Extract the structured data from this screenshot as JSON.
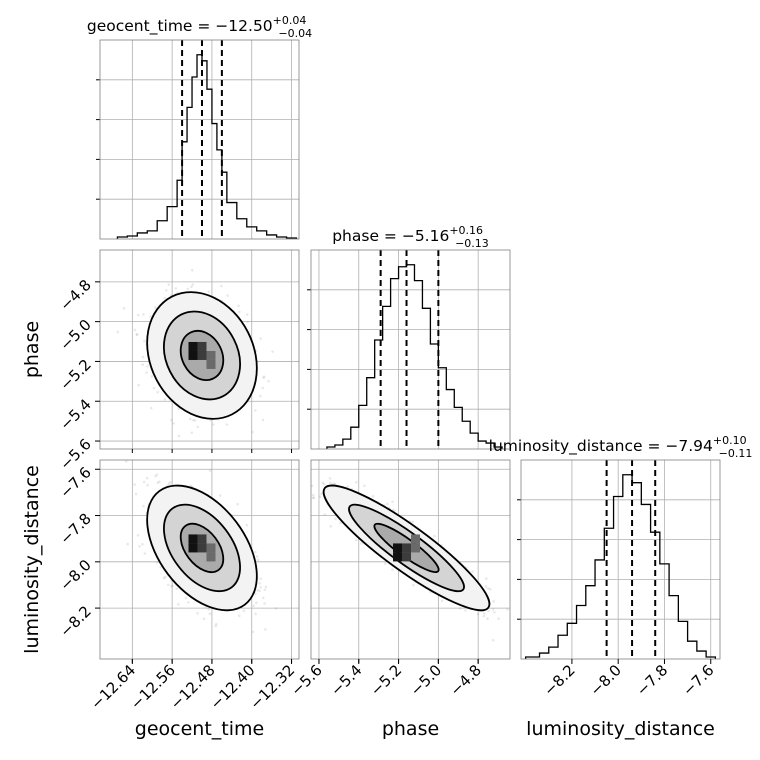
{
  "chart_data": {
    "type": "corner",
    "parameters": [
      {
        "name": "geocent_time",
        "axis_label": "geocent_time",
        "title_main": "geocent_time = −12.50",
        "title_plus": "+0.04",
        "title_minus": "−0.04",
        "median": -12.5,
        "quantiles": [
          -12.54,
          -12.5,
          -12.46
        ],
        "range": [
          -12.705,
          -12.305
        ],
        "ticks": [
          -12.64,
          -12.56,
          -12.48,
          -12.4,
          -12.32
        ],
        "tick_labels": [
          "−12.64",
          "−12.56",
          "−12.48",
          "−12.40",
          "−12.32"
        ],
        "hist_edges": [
          -12.67,
          -12.65,
          -12.63,
          -12.61,
          -12.59,
          -12.57,
          -12.55,
          -12.54,
          -12.53,
          -12.52,
          -12.51,
          -12.5,
          -12.49,
          -12.48,
          -12.47,
          -12.46,
          -12.45,
          -12.43,
          -12.41,
          -12.39,
          -12.37,
          -12.35,
          -12.33,
          -12.31
        ],
        "hist_counts": [
          0.01,
          0.015,
          0.03,
          0.04,
          0.09,
          0.16,
          0.29,
          0.48,
          0.65,
          0.8,
          0.91,
          0.88,
          0.74,
          0.57,
          0.44,
          0.33,
          0.18,
          0.1,
          0.06,
          0.04,
          0.02,
          0.01,
          0.005
        ]
      },
      {
        "name": "phase",
        "axis_label": "phase",
        "title_main": "phase = −5.16",
        "title_plus": "+0.16",
        "title_minus": "−0.13",
        "median": -5.16,
        "quantiles": [
          -5.29,
          -5.16,
          -5.0
        ],
        "range": [
          -5.64,
          -4.64
        ],
        "ticks": [
          -5.6,
          -5.4,
          -5.2,
          -5.0,
          -4.8
        ],
        "tick_labels": [
          "−5.6",
          "−5.4",
          "−5.2",
          "−5.0",
          "−4.8"
        ],
        "hist_edges": [
          -5.56,
          -5.52,
          -5.48,
          -5.44,
          -5.4,
          -5.36,
          -5.32,
          -5.28,
          -5.24,
          -5.2,
          -5.16,
          -5.12,
          -5.08,
          -5.04,
          -5.0,
          -4.96,
          -4.92,
          -4.88,
          -4.84,
          -4.8,
          -4.76,
          -4.72,
          -4.68
        ],
        "hist_counts": [
          0.01,
          0.02,
          0.05,
          0.11,
          0.22,
          0.36,
          0.55,
          0.72,
          0.86,
          0.92,
          0.93,
          0.85,
          0.71,
          0.53,
          0.41,
          0.3,
          0.21,
          0.14,
          0.08,
          0.04,
          0.03,
          0.01
        ]
      },
      {
        "name": "luminosity_distance",
        "axis_label": "luminosity_distance",
        "title_main": "luminosity_distance = −7.94",
        "title_plus": "+0.10",
        "title_minus": "−0.11",
        "median": -7.94,
        "quantiles": [
          -8.05,
          -7.94,
          -7.84
        ],
        "range": [
          -8.42,
          -7.56
        ],
        "ticks": [
          -8.2,
          -8.0,
          -7.8,
          -7.6
        ],
        "tick_labels": [
          "−8.2",
          "−8.0",
          "−7.8",
          "−7.6"
        ],
        "hist_edges": [
          -8.4,
          -8.34,
          -8.3,
          -8.26,
          -8.22,
          -8.18,
          -8.14,
          -8.1,
          -8.06,
          -8.02,
          -7.98,
          -7.94,
          -7.9,
          -7.86,
          -7.82,
          -7.78,
          -7.74,
          -7.7,
          -7.66,
          -7.62,
          -7.58
        ],
        "hist_counts": [
          0.01,
          0.03,
          0.06,
          0.12,
          0.18,
          0.27,
          0.37,
          0.5,
          0.66,
          0.82,
          0.93,
          0.89,
          0.78,
          0.64,
          0.48,
          0.32,
          0.19,
          0.09,
          0.04,
          0.01
        ]
      }
    ],
    "pairs": [
      {
        "x": "geocent_time",
        "y": "phase",
        "center": [
          -12.5,
          -5.17
        ],
        "sd": [
          0.045,
          0.13
        ],
        "corr": -0.2
      },
      {
        "x": "geocent_time",
        "y": "luminosity_distance",
        "center": [
          -12.5,
          -7.94
        ],
        "sd": [
          0.045,
          0.11
        ],
        "corr": -0.45
      },
      {
        "x": "phase",
        "y": "luminosity_distance",
        "center": [
          -5.16,
          -7.94
        ],
        "sd": [
          0.17,
          0.11
        ],
        "corr": -0.9
      }
    ]
  }
}
